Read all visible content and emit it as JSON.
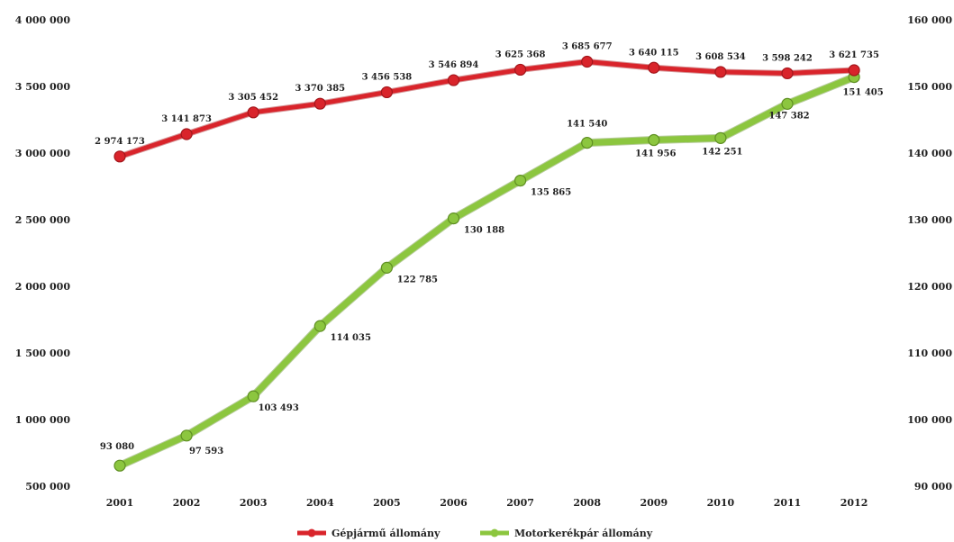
{
  "chart_data": {
    "type": "line",
    "categories": [
      "2001",
      "2002",
      "2003",
      "2004",
      "2005",
      "2006",
      "2007",
      "2008",
      "2009",
      "2010",
      "2011",
      "2012"
    ],
    "left_axis": {
      "ylim": [
        500000,
        4000000
      ],
      "ticks": [
        500000,
        1000000,
        1500000,
        2000000,
        2500000,
        3000000,
        3500000,
        4000000
      ],
      "tick_labels": [
        "500 000",
        "1 000 000",
        "1 500 000",
        "2 000 000",
        "2 500 000",
        "3 000 000",
        "3 500 000",
        "4 000 000"
      ]
    },
    "right_axis": {
      "ylim": [
        90000,
        160000
      ],
      "ticks": [
        90000,
        100000,
        110000,
        120000,
        130000,
        140000,
        150000,
        160000
      ],
      "tick_labels": [
        "90 000",
        "100 000",
        "110 000",
        "120 000",
        "130 000",
        "140 000",
        "150 000",
        "160 000"
      ]
    },
    "series": [
      {
        "name": "Gépjármű állomány",
        "axis": "left",
        "color": "#d9242b",
        "values": [
          2974173,
          3141873,
          3305452,
          3370385,
          3456538,
          3546894,
          3625368,
          3685677,
          3640115,
          3608534,
          3598242,
          3621735
        ],
        "labels": [
          "2 974 173",
          "3 141 873",
          "3 305 452",
          "3 370 385",
          "3 456 538",
          "3 546 894",
          "3 625 368",
          "3 685 677",
          "3 640 115",
          "3 608 534",
          "3 598 242",
          "3 621 735"
        ]
      },
      {
        "name": "Motorkerékpár állomány",
        "axis": "right",
        "color": "#8cc63f",
        "values": [
          93080,
          97593,
          103493,
          114035,
          122785,
          130188,
          135865,
          141540,
          141956,
          142251,
          147382,
          151405
        ],
        "labels": [
          "93 080",
          "97 593",
          "103 493",
          "114 035",
          "122 785",
          "130 188",
          "135 865",
          "141 540",
          "141 956",
          "142 251",
          "147 382",
          "151 405"
        ]
      }
    ],
    "legend": "bottom-center",
    "grid": false
  }
}
